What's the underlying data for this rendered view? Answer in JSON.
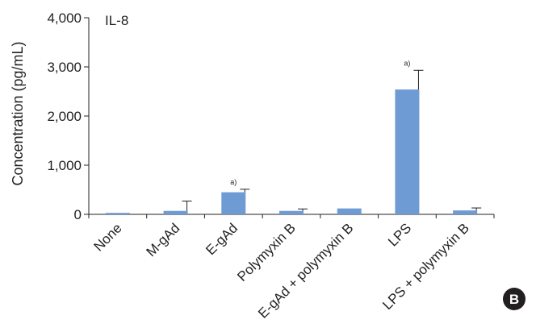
{
  "chart_data": {
    "type": "bar",
    "title": "IL-8",
    "xlabel": "",
    "ylabel": "Concentration (pg/mL)",
    "ylim": [
      0,
      4000
    ],
    "yticks": [
      "0",
      "1,000",
      "2,000",
      "3,000",
      "4,000"
    ],
    "ytick_values": [
      0,
      1000,
      2000,
      3000,
      4000
    ],
    "categories": [
      "None",
      "M-gAd",
      "E-gAd",
      "Polymyxin B",
      "E-gAd + polymyxin B",
      "LPS",
      "LPS + polymyxin B"
    ],
    "values": [
      30,
      70,
      450,
      70,
      120,
      2540,
      80
    ],
    "errors": [
      0,
      200,
      60,
      40,
      0,
      390,
      50
    ],
    "annotations": [
      "",
      "",
      "a)",
      "",
      "",
      "a)",
      ""
    ],
    "bar_color": "#6f9bd5",
    "grid": false,
    "legend": "none",
    "panel_label": "B"
  }
}
